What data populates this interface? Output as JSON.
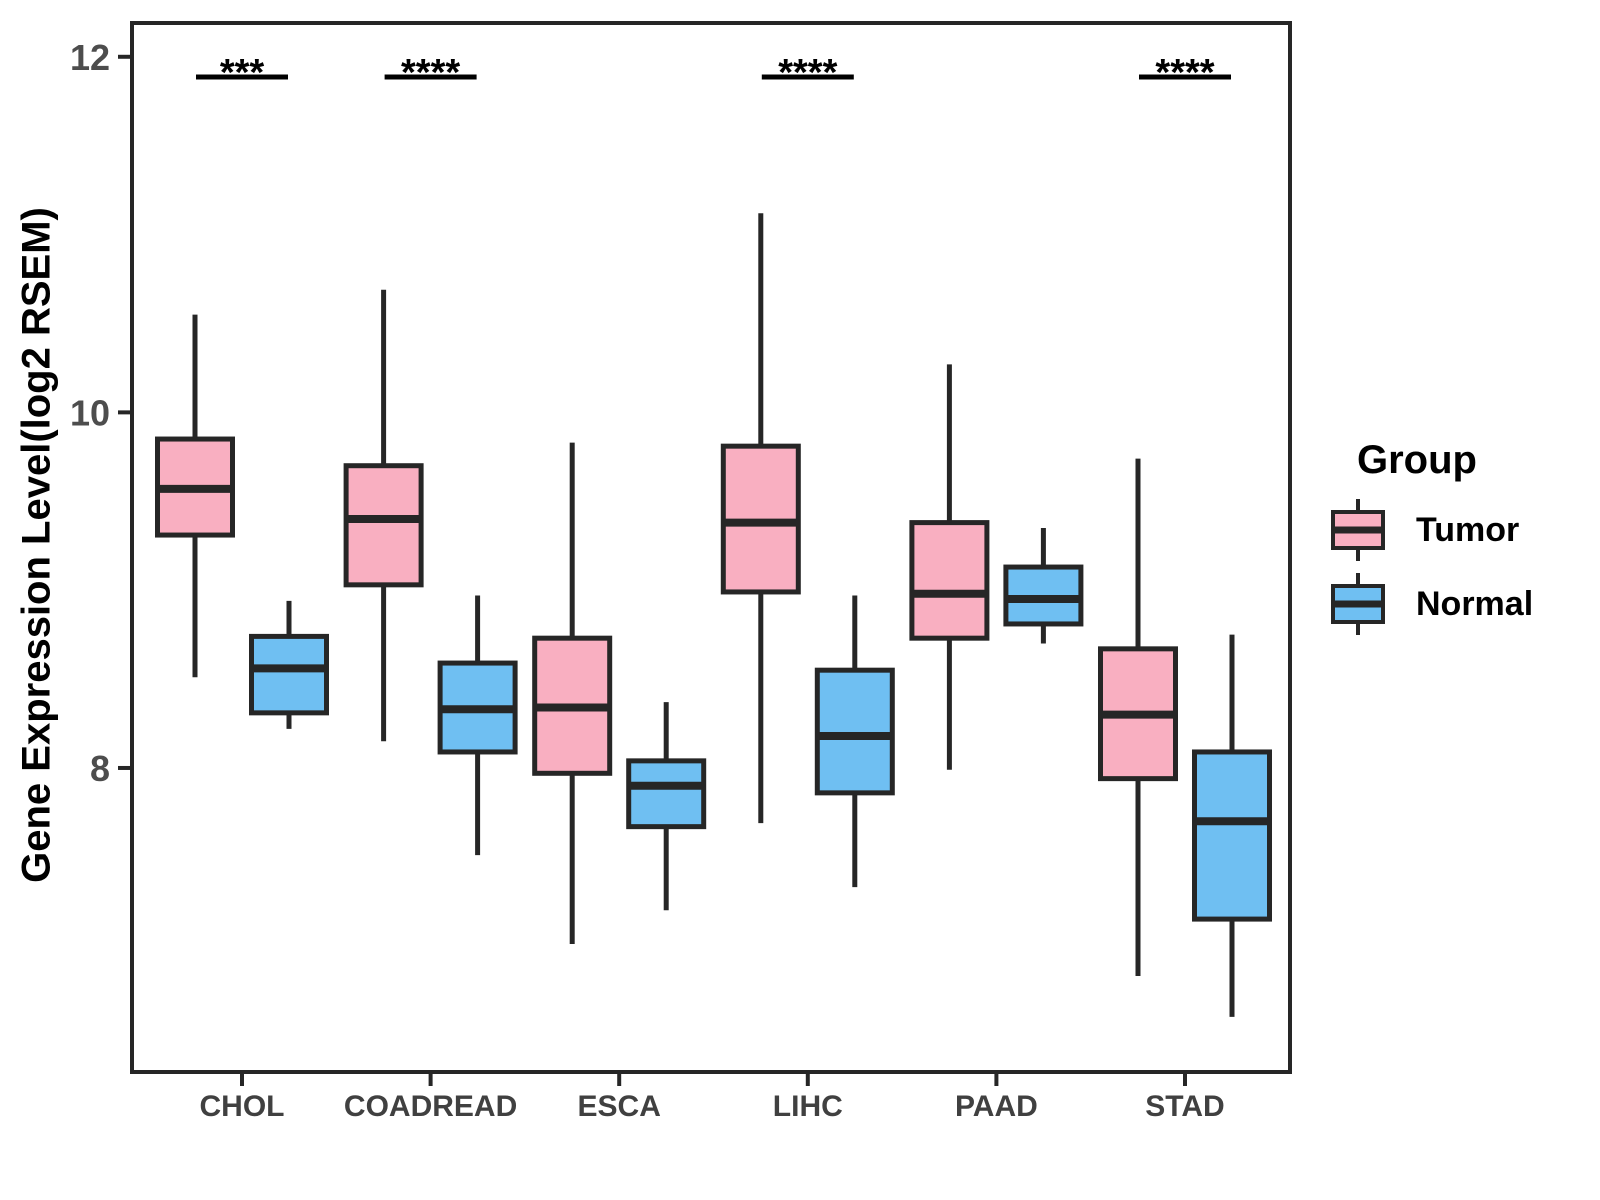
{
  "y_axis": {
    "title": "Gene Expression Level(log2 RSEM)",
    "ticks": [
      8,
      10,
      12
    ]
  },
  "x_axis": {
    "categories": [
      "CHOL",
      "COADREAD",
      "ESCA",
      "LIHC",
      "PAAD",
      "STAD"
    ]
  },
  "legend": {
    "title": "Group",
    "items": [
      {
        "label": "Tumor",
        "color": "#F9AFC1"
      },
      {
        "label": "Normal",
        "color": "#6FBFF2"
      }
    ]
  },
  "colors": {
    "box_stroke": "#262626",
    "axis_text": "#4D4D4D",
    "category_text": "#404040",
    "annotation": "#000000"
  },
  "chart_data": {
    "type": "boxplot",
    "title": "",
    "xlabel": "",
    "ylabel": "Gene Expression Level(log2 RSEM)",
    "ylim": [
      6.29,
      12.19
    ],
    "grid": false,
    "legend_position": "right",
    "categories": [
      "CHOL",
      "COADREAD",
      "ESCA",
      "LIHC",
      "PAAD",
      "STAD"
    ],
    "series": [
      {
        "name": "Tumor",
        "color": "#F9AFC1",
        "boxes": [
          {
            "min": 8.51,
            "q1": 9.31,
            "median": 9.57,
            "q3": 9.85,
            "max": 10.55
          },
          {
            "min": 8.15,
            "q1": 9.03,
            "median": 9.4,
            "q3": 9.7,
            "max": 10.69
          },
          {
            "min": 7.01,
            "q1": 7.97,
            "median": 8.34,
            "q3": 8.73,
            "max": 9.83
          },
          {
            "min": 7.69,
            "q1": 8.99,
            "median": 9.38,
            "q3": 9.81,
            "max": 11.12
          },
          {
            "min": 7.99,
            "q1": 8.73,
            "median": 8.98,
            "q3": 9.38,
            "max": 10.27
          },
          {
            "min": 6.83,
            "q1": 7.94,
            "median": 8.3,
            "q3": 8.67,
            "max": 9.74
          }
        ]
      },
      {
        "name": "Normal",
        "color": "#6FBFF2",
        "boxes": [
          {
            "min": 8.22,
            "q1": 8.31,
            "median": 8.56,
            "q3": 8.74,
            "max": 8.94
          },
          {
            "min": 7.51,
            "q1": 8.09,
            "median": 8.33,
            "q3": 8.59,
            "max": 8.97
          },
          {
            "min": 7.2,
            "q1": 7.67,
            "median": 7.9,
            "q3": 8.04,
            "max": 8.37
          },
          {
            "min": 7.33,
            "q1": 7.86,
            "median": 8.18,
            "q3": 8.55,
            "max": 8.97
          },
          {
            "min": 8.7,
            "q1": 8.81,
            "median": 8.95,
            "q3": 9.13,
            "max": 9.35
          },
          {
            "min": 6.6,
            "q1": 7.15,
            "median": 7.7,
            "q3": 8.09,
            "max": 8.75
          }
        ]
      }
    ],
    "significance": [
      {
        "category": "CHOL",
        "label": "***"
      },
      {
        "category": "COADREAD",
        "label": "****"
      },
      {
        "category": "LIHC",
        "label": "****"
      },
      {
        "category": "STAD",
        "label": "****"
      }
    ]
  }
}
